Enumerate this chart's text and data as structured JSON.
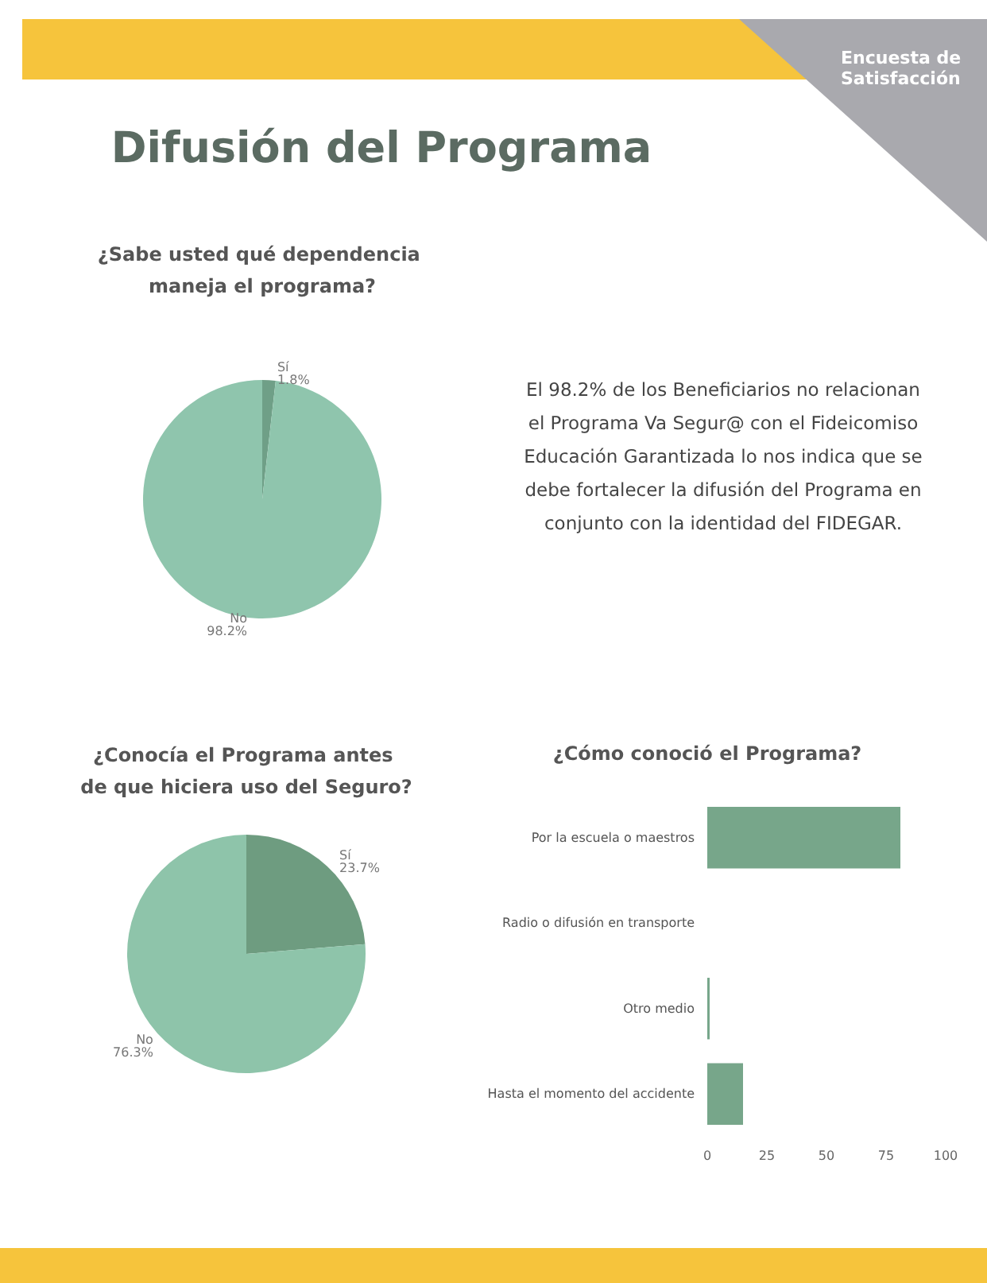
{
  "chart_data": [
    {
      "type": "other",
      "title": "Difusión del Programa",
      "annotations": [
        "Encuesta de Satisfacción"
      ]
    },
    {
      "type": "pie",
      "title": "¿Sabe usted qué dependencia maneja el programa?",
      "categories": [
        "Sí",
        "No"
      ],
      "values": [
        1.8,
        98.2
      ],
      "colors": [
        "#6f9f87",
        "#8fc5ad"
      ],
      "value_labels": [
        "1.8%",
        "98.2%"
      ]
    },
    {
      "type": "other",
      "annotations": [
        "El 98.2% de los Beneficiarios no relacionan el Programa Va Segur@ con el Fideicomiso Educación Garantizada lo nos indica que se debe fortalecer la difusión del Programa en conjunto con la identidad del FIDEGAR."
      ]
    },
    {
      "type": "pie",
      "title": "¿Conocía el Programa antes de que hiciera uso del Seguro?",
      "categories": [
        "Sí",
        "No"
      ],
      "values": [
        23.7,
        76.3
      ],
      "colors": [
        "#6e9c80",
        "#8ec4aa"
      ],
      "value_labels": [
        "23.7%",
        "76.3%"
      ]
    },
    {
      "type": "bar",
      "orientation": "horizontal",
      "title": "¿Cómo conoció el Programa?",
      "categories": [
        "Por la escuela o maestros",
        "Radio o difusión en transporte",
        "Otro medio",
        "Hasta el momento del accidente"
      ],
      "values": [
        81,
        0,
        1,
        15
      ],
      "color": "#77a68a",
      "xlim": [
        0,
        100
      ],
      "xticks": [
        0,
        25,
        50,
        75,
        100
      ]
    }
  ]
}
